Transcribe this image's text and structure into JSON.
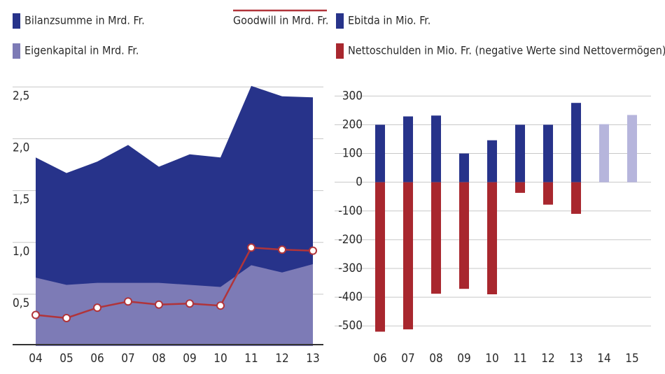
{
  "chart_data": [
    {
      "type": "area",
      "categories": [
        "04",
        "05",
        "06",
        "07",
        "08",
        "09",
        "10",
        "11",
        "12",
        "13"
      ],
      "ylim": [
        0,
        2.55
      ],
      "yticks": [
        {
          "value": 0.5,
          "label": "0,5"
        },
        {
          "value": 1.0,
          "label": "1,0"
        },
        {
          "value": 1.5,
          "label": "1,5"
        },
        {
          "value": 2.0,
          "label": "2,0"
        },
        {
          "value": 2.5,
          "label": "2,5"
        }
      ],
      "grid": true,
      "series": [
        {
          "name": "Bilanzsumme in Mrd. Fr.",
          "type": "area",
          "color": "#27338a",
          "values": [
            1.82,
            1.67,
            1.78,
            1.94,
            1.73,
            1.85,
            1.82,
            2.51,
            2.41,
            2.4
          ]
        },
        {
          "name": "Eigenkapital in Mrd. Fr.",
          "type": "area",
          "color": "#7d7bb6",
          "values": [
            0.66,
            0.59,
            0.61,
            0.61,
            0.61,
            0.59,
            0.57,
            0.78,
            0.71,
            0.79
          ]
        },
        {
          "name": "Goodwill in Mrd. Fr.",
          "type": "line",
          "color": "#b0343a",
          "values": [
            0.3,
            0.27,
            0.37,
            0.43,
            0.4,
            0.41,
            0.39,
            0.95,
            0.93,
            0.92
          ]
        }
      ]
    },
    {
      "type": "bar",
      "categories": [
        "06",
        "07",
        "08",
        "09",
        "10",
        "11",
        "12",
        "13",
        "14",
        "15"
      ],
      "ylim": [
        -570,
        330
      ],
      "yticks": [
        -500,
        -400,
        -300,
        -200,
        -100,
        0,
        100,
        200,
        300
      ],
      "grid": true,
      "series": [
        {
          "name": "Ebitda in Mio. Fr.",
          "color": "#27338a",
          "colors": [
            "#27338a",
            "#27338a",
            "#27338a",
            "#27338a",
            "#27338a",
            "#27338a",
            "#27338a",
            "#27338a",
            "#b6b5dc",
            "#b6b5dc"
          ],
          "values": [
            200,
            229,
            232,
            100,
            146,
            200,
            200,
            276,
            202,
            234
          ]
        },
        {
          "name": "Nettoschulden in Mio. Fr. (negative Werte sind Nettovermögen)",
          "color": "#a8272e",
          "values": [
            -520,
            -512,
            -388,
            -371,
            -390,
            -37,
            -78,
            -110,
            null,
            null
          ]
        }
      ]
    }
  ]
}
